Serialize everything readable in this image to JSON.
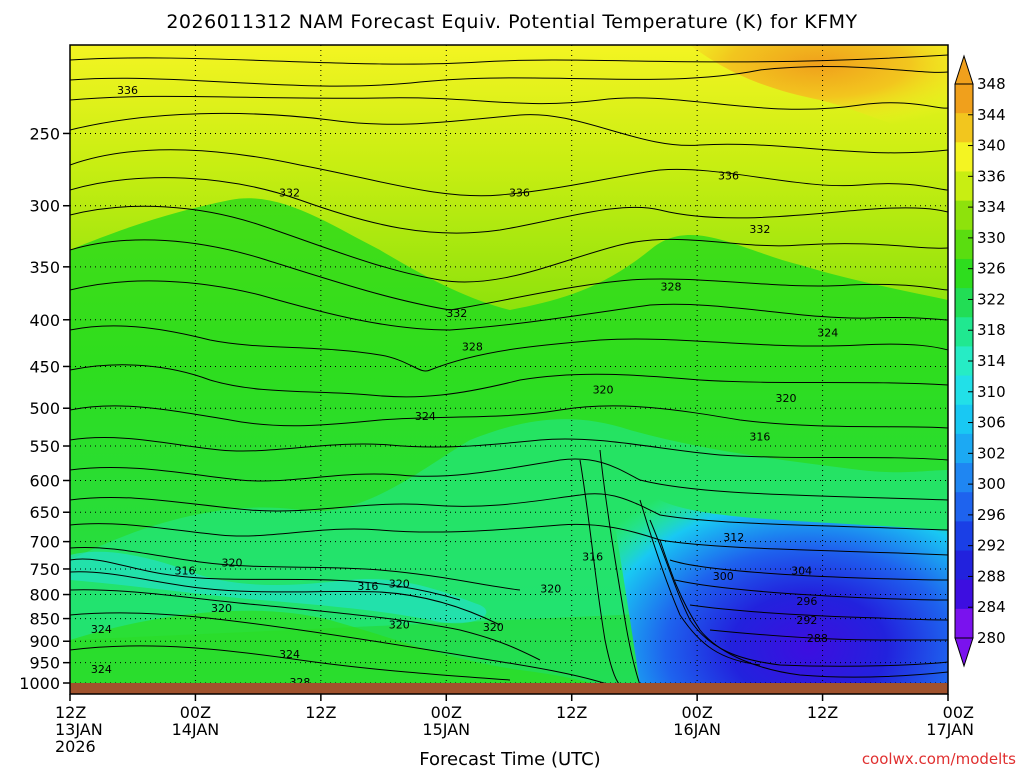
{
  "chart_data": {
    "type": "heatmap",
    "title": "2026011312 NAM Forecast Equiv. Potential Temperature (K) for KFMY",
    "xlabel": "Forecast Time (UTC)",
    "credit": "coolwx.com/modelts",
    "x_ticks": [
      {
        "hour": 0,
        "lines": [
          "12Z",
          "13JAN",
          "2026"
        ]
      },
      {
        "hour": 12,
        "lines": [
          "00Z",
          "14JAN"
        ]
      },
      {
        "hour": 24,
        "lines": [
          "12Z"
        ]
      },
      {
        "hour": 36,
        "lines": [
          "00Z",
          "15JAN"
        ]
      },
      {
        "hour": 48,
        "lines": [
          "12Z"
        ]
      },
      {
        "hour": 60,
        "lines": [
          "00Z",
          "16JAN"
        ]
      },
      {
        "hour": 72,
        "lines": [
          "12Z"
        ]
      },
      {
        "hour": 84,
        "lines": [
          "00Z",
          "17JAN"
        ]
      }
    ],
    "xlim": [
      0,
      84
    ],
    "y_ticks": [
      "250",
      "300",
      "350",
      "400",
      "450",
      "500",
      "550",
      "600",
      "650",
      "700",
      "750",
      "800",
      "850",
      "900",
      "950",
      "1000"
    ],
    "ylim": [
      200,
      1000
    ],
    "y_scale": "log-pressure",
    "grid": true,
    "colorbar": {
      "ticks": [
        "280",
        "284",
        "288",
        "292",
        "296",
        "300",
        "302",
        "306",
        "310",
        "314",
        "318",
        "322",
        "326",
        "330",
        "334",
        "336",
        "340",
        "344",
        "348"
      ],
      "colors": [
        "#7a12ee",
        "#3d0ee0",
        "#2222dd",
        "#1a3fe6",
        "#1e63ee",
        "#1f86f2",
        "#1ca9f3",
        "#19c8f3",
        "#22e0e8",
        "#26ecc5",
        "#20e890",
        "#22dd55",
        "#2edd1e",
        "#5add10",
        "#8ee20c",
        "#c8ee12",
        "#f4f422",
        "#f2c61e",
        "#f0a01c"
      ]
    },
    "contour_labels": [
      {
        "text": "336",
        "hour": 5.5,
        "p": 224
      },
      {
        "text": "332",
        "hour": 21,
        "p": 290
      },
      {
        "text": "336",
        "hour": 43,
        "p": 290
      },
      {
        "text": "336",
        "hour": 63,
        "p": 278
      },
      {
        "text": "332",
        "hour": 66,
        "p": 318
      },
      {
        "text": "328",
        "hour": 57.5,
        "p": 368
      },
      {
        "text": "332",
        "hour": 37,
        "p": 393
      },
      {
        "text": "328",
        "hour": 38.5,
        "p": 428
      },
      {
        "text": "324",
        "hour": 72.5,
        "p": 413
      },
      {
        "text": "320",
        "hour": 51,
        "p": 477
      },
      {
        "text": "320",
        "hour": 68.5,
        "p": 487
      },
      {
        "text": "324",
        "hour": 34,
        "p": 510
      },
      {
        "text": "316",
        "hour": 66,
        "p": 537
      },
      {
        "text": "312",
        "hour": 63.5,
        "p": 692
      },
      {
        "text": "316",
        "hour": 50,
        "p": 727
      },
      {
        "text": "316",
        "hour": 11,
        "p": 753
      },
      {
        "text": "320",
        "hour": 15.5,
        "p": 738
      },
      {
        "text": "304",
        "hour": 70,
        "p": 753
      },
      {
        "text": "300",
        "hour": 62.5,
        "p": 763
      },
      {
        "text": "316",
        "hour": 28.5,
        "p": 783
      },
      {
        "text": "320",
        "hour": 31.5,
        "p": 778
      },
      {
        "text": "320",
        "hour": 46,
        "p": 788
      },
      {
        "text": "296",
        "hour": 70.5,
        "p": 813
      },
      {
        "text": "320",
        "hour": 14.5,
        "p": 828
      },
      {
        "text": "292",
        "hour": 70.5,
        "p": 853
      },
      {
        "text": "320",
        "hour": 31.5,
        "p": 863
      },
      {
        "text": "320",
        "hour": 40.5,
        "p": 868
      },
      {
        "text": "324",
        "hour": 3,
        "p": 873
      },
      {
        "text": "288",
        "hour": 71.5,
        "p": 893
      },
      {
        "text": "324",
        "hour": 21,
        "p": 930
      },
      {
        "text": "324",
        "hour": 3,
        "p": 965
      },
      {
        "text": "328",
        "hour": 22,
        "p": 997
      }
    ]
  }
}
